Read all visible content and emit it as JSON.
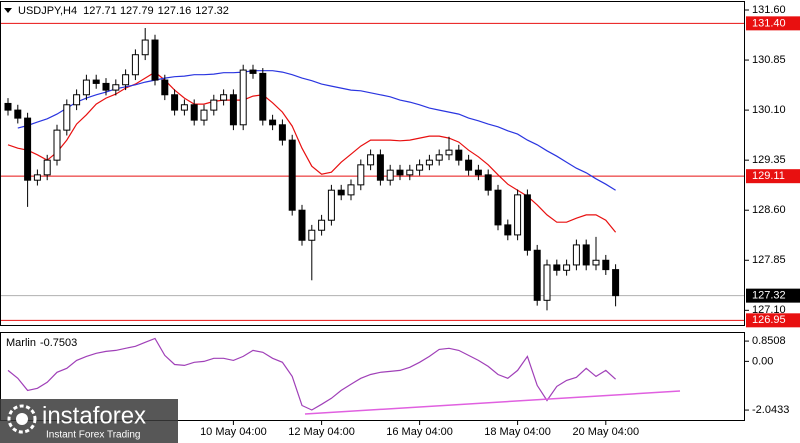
{
  "chart_data": [
    {
      "type": "candlestick",
      "symbol": "USDJPY,H4",
      "categories": [
        null,
        null,
        null,
        null,
        null,
        null,
        null,
        null,
        null,
        null,
        null,
        null,
        null,
        null,
        null,
        null,
        null,
        null,
        null,
        null,
        null,
        null,
        null,
        "10 May 04:00",
        null,
        null,
        null,
        null,
        null,
        null,
        null,
        null,
        "12 May 04:00",
        null,
        null,
        null,
        null,
        null,
        null,
        null,
        null,
        null,
        "16 May 04:00",
        null,
        null,
        null,
        null,
        null,
        null,
        null,
        null,
        null,
        "18 May 04:00",
        null,
        null,
        null,
        null,
        null,
        null,
        null,
        null,
        "20 May 04:00",
        null
      ],
      "open": [
        130.2,
        130.1,
        129.98,
        129.05,
        129.13,
        129.35,
        129.8,
        130.18,
        130.33,
        130.55,
        130.5,
        130.4,
        130.48,
        130.63,
        130.93,
        131.15,
        130.55,
        130.33,
        130.1,
        130.18,
        129.95,
        130.1,
        130.25,
        130.33,
        129.88,
        130.7,
        130.65,
        129.95,
        129.88,
        129.65,
        128.6,
        128.15,
        128.3,
        128.45,
        128.9,
        128.83,
        128.98,
        129.28,
        129.43,
        129.05,
        129.2,
        129.13,
        129.2,
        129.28,
        129.35,
        129.43,
        129.5,
        129.35,
        129.2,
        129.13,
        128.9,
        128.38,
        128.23,
        128.83,
        128.0,
        127.25,
        127.78,
        127.7,
        127.78,
        128.08,
        127.78,
        127.85,
        127.71
      ],
      "high": [
        130.28,
        130.18,
        130.06,
        129.21,
        129.43,
        129.88,
        130.26,
        130.41,
        130.63,
        130.63,
        130.58,
        130.56,
        130.71,
        131.01,
        131.33,
        131.23,
        130.63,
        130.41,
        130.26,
        130.26,
        130.18,
        130.33,
        130.41,
        130.41,
        130.78,
        130.78,
        130.73,
        130.03,
        129.96,
        129.73,
        128.68,
        128.38,
        128.53,
        128.98,
        128.98,
        129.06,
        129.36,
        129.51,
        129.51,
        129.28,
        129.28,
        129.28,
        129.36,
        129.43,
        129.51,
        129.7,
        129.58,
        129.43,
        129.28,
        129.21,
        128.98,
        128.46,
        128.91,
        128.91,
        128.08,
        127.86,
        127.86,
        127.86,
        128.16,
        128.16,
        128.2,
        127.93,
        127.79
      ],
      "low": [
        130.02,
        129.9,
        128.65,
        128.97,
        129.05,
        129.27,
        129.72,
        130.1,
        130.25,
        130.42,
        130.32,
        130.32,
        130.4,
        130.55,
        130.85,
        130.47,
        130.25,
        130.02,
        130.02,
        129.87,
        129.87,
        130.02,
        130.17,
        129.8,
        129.8,
        130.57,
        129.87,
        129.8,
        129.57,
        128.52,
        128.07,
        127.55,
        128.22,
        128.37,
        128.75,
        128.75,
        128.9,
        129.2,
        128.97,
        128.97,
        129.05,
        129.05,
        129.12,
        129.2,
        129.27,
        129.35,
        129.27,
        129.12,
        129.05,
        128.82,
        128.3,
        128.15,
        128.15,
        127.92,
        127.17,
        127.1,
        127.62,
        127.62,
        127.7,
        127.7,
        127.7,
        127.63,
        127.16
      ],
      "close": [
        130.1,
        129.98,
        129.05,
        129.13,
        129.35,
        129.8,
        130.18,
        130.33,
        130.55,
        130.5,
        130.4,
        130.48,
        130.63,
        130.93,
        131.15,
        130.55,
        130.33,
        130.1,
        130.18,
        129.95,
        130.1,
        130.25,
        130.33,
        129.88,
        130.7,
        130.65,
        129.95,
        129.88,
        129.65,
        128.6,
        128.15,
        128.3,
        128.45,
        128.9,
        128.83,
        128.98,
        129.28,
        129.43,
        129.05,
        129.2,
        129.13,
        129.2,
        129.28,
        129.35,
        129.43,
        129.5,
        129.35,
        129.2,
        129.13,
        128.9,
        128.38,
        128.23,
        128.83,
        128.0,
        127.25,
        127.78,
        127.7,
        127.78,
        128.08,
        127.78,
        127.85,
        127.71,
        127.32
      ],
      "series": [
        {
          "color": "#e81010",
          "values": [
            129.58,
            129.53,
            129.5,
            129.43,
            129.35,
            129.47,
            129.65,
            129.89,
            130.03,
            130.19,
            130.28,
            130.34,
            130.43,
            130.49,
            130.58,
            130.67,
            130.55,
            130.4,
            130.28,
            130.19,
            130.19,
            130.23,
            130.25,
            130.25,
            130.25,
            130.31,
            130.33,
            130.21,
            130.07,
            129.86,
            129.53,
            129.26,
            129.14,
            129.17,
            129.32,
            129.44,
            129.56,
            129.65,
            129.65,
            129.65,
            129.64,
            129.65,
            129.68,
            129.71,
            129.71,
            129.68,
            129.62,
            129.5,
            129.4,
            129.28,
            129.13,
            128.99,
            128.9,
            128.81,
            128.68,
            128.53,
            128.42,
            128.42,
            128.48,
            128.53,
            128.53,
            128.45,
            128.27
          ]
        },
        {
          "color": "#2a35e0",
          "values": [
            null,
            129.83,
            129.87,
            129.92,
            129.97,
            130.04,
            130.13,
            130.22,
            130.28,
            130.33,
            130.37,
            130.42,
            130.45,
            130.48,
            130.52,
            130.55,
            130.58,
            130.6,
            130.61,
            130.63,
            130.63,
            130.64,
            130.66,
            130.66,
            130.67,
            130.69,
            130.69,
            130.69,
            130.67,
            130.63,
            130.58,
            130.54,
            130.49,
            130.46,
            130.43,
            130.4,
            130.39,
            130.36,
            130.33,
            130.3,
            130.25,
            130.22,
            130.18,
            130.13,
            130.1,
            130.07,
            130.04,
            129.98,
            129.94,
            129.89,
            129.85,
            129.79,
            129.74,
            129.65,
            129.58,
            129.49,
            129.41,
            129.32,
            129.23,
            129.16,
            129.07,
            128.99,
            128.9
          ]
        }
      ],
      "levels": [
        {
          "value": 131.4,
          "label": "131.40"
        },
        129.11,
        126.95
      ],
      "level_color": "#e81010",
      "ylim": [
        126.88,
        131.72
      ],
      "yticks": [
        {
          "value": 131.6,
          "label": "131.60"
        },
        130.85,
        {
          "value": 130.1,
          "label": "130.10"
        },
        129.35,
        {
          "value": 128.6,
          "label": "128.60"
        },
        127.85,
        {
          "value": 127.1,
          "label": "127.10"
        }
      ]
    },
    {
      "type": "line",
      "name": "Marlin",
      "color": "#a040b8",
      "values": [
        -0.38,
        -0.71,
        -1.22,
        -1.13,
        -0.88,
        -0.46,
        -0.29,
        0.04,
        0.21,
        0.34,
        0.42,
        0.46,
        0.55,
        0.63,
        0.8,
        0.96,
        0.25,
        -0.13,
        -0.17,
        -0.04,
        0.0,
        0.13,
        0.13,
        0.04,
        0.21,
        0.46,
        0.38,
        0.13,
        -0.04,
        -0.63,
        -1.85,
        -2.04,
        -1.8,
        -1.55,
        -1.22,
        -0.96,
        -0.71,
        -0.55,
        -0.46,
        -0.42,
        -0.38,
        -0.25,
        -0.04,
        0.21,
        0.5,
        0.55,
        0.46,
        0.25,
        0.04,
        -0.21,
        -0.55,
        -0.71,
        -0.38,
        0.21,
        -1.01,
        -1.64,
        -1.05,
        -0.8,
        -0.67,
        -0.29,
        -0.63,
        -0.38,
        -0.7503
      ],
      "ylim": [
        -2.46,
        1.19
      ],
      "yticks": [
        0.8508,
        {
          "value": 0,
          "label": "0.00"
        },
        -2.0433
      ]
    }
  ],
  "watermark": {
    "brand": "instaforex",
    "tagline": "Instant Forex Trading"
  }
}
